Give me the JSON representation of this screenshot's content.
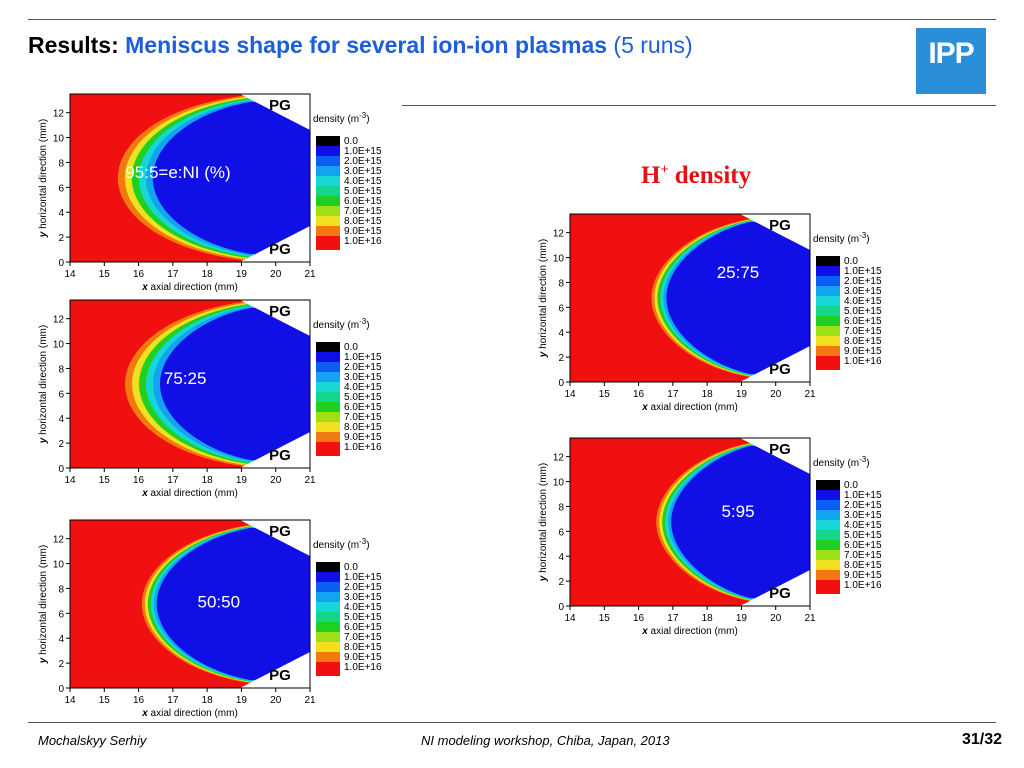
{
  "header": {
    "title_prefix": "Results:",
    "title_main": "Meniscus shape for several ion-ion plasmas",
    "title_runs": "(5 runs)",
    "logo_text": "IPP"
  },
  "annotation": {
    "species": "H",
    "superscript": "+",
    "label": "density"
  },
  "colorbar": {
    "title_prefix": "density (m",
    "title_exp": "-3",
    "title_suffix": ")",
    "levels": [
      {
        "label": "0.0",
        "color": "#000000"
      },
      {
        "label": "1.0E+15",
        "color": "#1010e6"
      },
      {
        "label": "2.0E+15",
        "color": "#0a5ef0"
      },
      {
        "label": "3.0E+15",
        "color": "#12a4f0"
      },
      {
        "label": "4.0E+15",
        "color": "#16d6d6"
      },
      {
        "label": "5.0E+15",
        "color": "#14d68a"
      },
      {
        "label": "6.0E+15",
        "color": "#20d020"
      },
      {
        "label": "7.0E+15",
        "color": "#9ee016"
      },
      {
        "label": "8.0E+15",
        "color": "#f0e020"
      },
      {
        "label": "9.0E+15",
        "color": "#f07a10"
      },
      {
        "label": "1.0E+16",
        "color": "#f01010"
      }
    ]
  },
  "plots": [
    {
      "ratio": "95:5=e:NI (%)",
      "pg_top": "PG",
      "pg_bottom": "PG"
    },
    {
      "ratio": "75:25",
      "pg_top": "PG",
      "pg_bottom": "PG"
    },
    {
      "ratio": "50:50",
      "pg_top": "PG",
      "pg_bottom": "PG"
    },
    {
      "ratio": "25:75",
      "pg_top": "PG",
      "pg_bottom": "PG"
    },
    {
      "ratio": "5:95",
      "pg_top": "PG",
      "pg_bottom": "PG"
    }
  ],
  "axes": {
    "xlabel_var": "x",
    "xlabel_text": "axial direction (mm)",
    "ylabel_var": "y",
    "ylabel_text": "horizontal direction (mm)",
    "xticks": [
      "14",
      "15",
      "16",
      "17",
      "18",
      "19",
      "20",
      "21"
    ],
    "yticks": [
      "0",
      "2",
      "4",
      "6",
      "8",
      "10",
      "12"
    ]
  },
  "footer": {
    "author": "Mochalskyy Serhiy",
    "event": "NI modeling workshop,  Chiba, Japan, 2013",
    "page": "31/32"
  }
}
